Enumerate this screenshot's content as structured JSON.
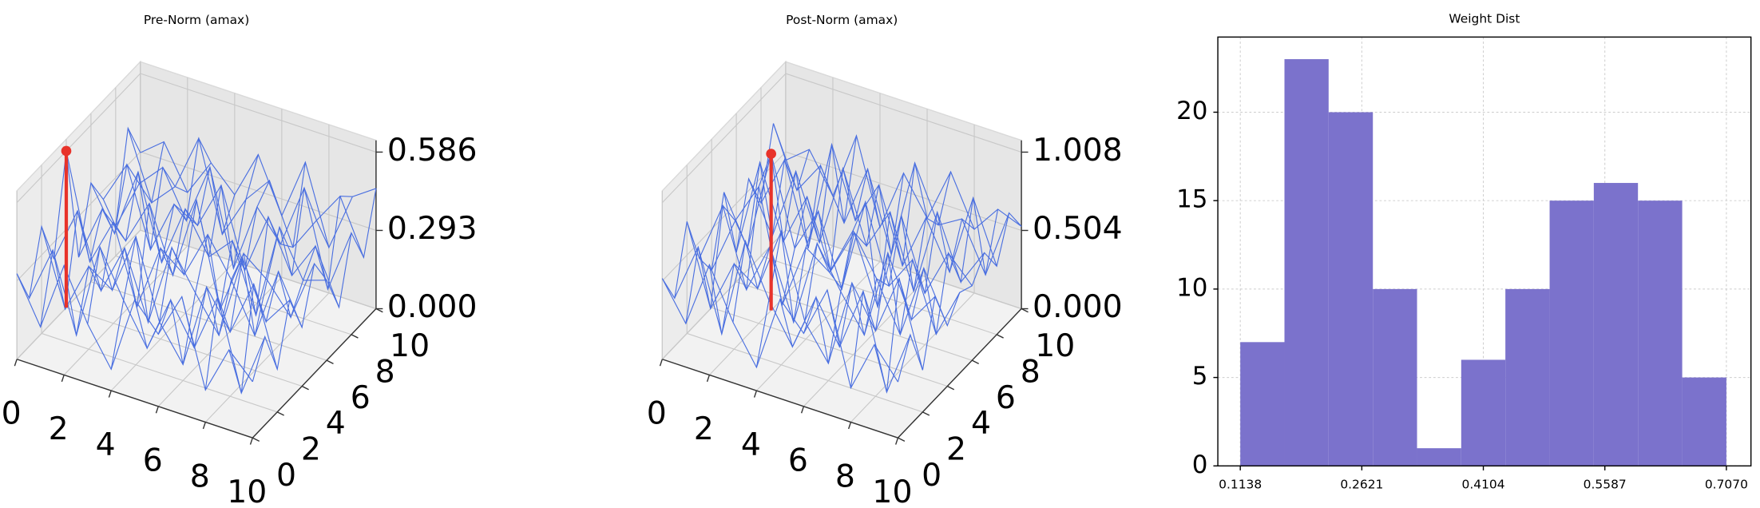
{
  "chart_data": [
    {
      "type": "wireframe3d",
      "title": "Pre-Norm (amax)",
      "color": "#4a6fe0",
      "peak_color": "#e8332a",
      "xlim": [
        0,
        10
      ],
      "ylim": [
        0,
        10
      ],
      "zlim": [
        0,
        0.63
      ],
      "xticks": [
        0,
        2,
        4,
        6,
        8,
        10
      ],
      "yticks": [
        0,
        2,
        4,
        6,
        8,
        10
      ],
      "zticks": [
        {
          "value": 0,
          "label": "0.000"
        },
        0.293,
        0.586
      ],
      "x": [
        0,
        1,
        2,
        3,
        4,
        5,
        6,
        7,
        8,
        9,
        10
      ],
      "y": [
        0,
        1,
        2,
        3,
        4,
        5,
        6,
        7,
        8,
        9,
        10
      ],
      "z": [
        [
          0.32,
          0.15,
          0.41,
          0.22,
          0.08,
          0.37,
          0.27,
          0.44,
          0.12,
          0.3,
          0.21
        ],
        [
          0.18,
          0.39,
          0.1,
          0.46,
          0.29,
          0.14,
          0.35,
          0.2,
          0.42,
          0.09,
          0.33
        ],
        [
          0.4,
          0.12,
          0.31,
          0.25,
          0.48,
          0.19,
          0.06,
          0.38,
          0.24,
          0.45,
          0.16
        ],
        [
          0.23,
          0.44,
          0.17,
          0.36,
          0.11,
          0.42,
          0.28,
          0.15,
          0.47,
          0.26,
          0.37
        ],
        [
          0.586,
          0.2,
          0.38,
          0.09,
          0.34,
          0.27,
          0.45,
          0.31,
          0.13,
          0.4,
          0.22
        ],
        [
          0.14,
          0.35,
          0.26,
          0.43,
          0.19,
          0.5,
          0.12,
          0.36,
          0.29,
          0.18,
          0.41
        ],
        [
          0.37,
          0.21,
          0.47,
          0.16,
          0.39,
          0.24,
          0.33,
          0.08,
          0.44,
          0.27,
          0.3
        ],
        [
          0.26,
          0.42,
          0.13,
          0.33,
          0.28,
          0.46,
          0.17,
          0.4,
          0.21,
          0.35,
          0.15
        ],
        [
          0.11,
          0.3,
          0.39,
          0.22,
          0.45,
          0.1,
          0.36,
          0.25,
          0.49,
          0.14,
          0.38
        ],
        [
          0.43,
          0.18,
          0.27,
          0.48,
          0.15,
          0.31,
          0.41,
          0.19,
          0.32,
          0.44,
          0.24
        ],
        [
          0.29,
          0.36,
          0.2,
          0.34,
          0.25,
          0.43,
          0.23,
          0.46,
          0.17,
          0.39,
          0.45
        ]
      ]
    },
    {
      "type": "wireframe3d",
      "title": "Post-Norm (amax)",
      "color": "#4a6fe0",
      "peak_color": "#e8332a",
      "xlim": [
        0,
        10
      ],
      "ylim": [
        0,
        10
      ],
      "zlim": [
        0,
        1.084
      ],
      "xticks": [
        0,
        2,
        4,
        6,
        8,
        10
      ],
      "yticks": [
        0,
        2,
        4,
        6,
        8,
        10
      ],
      "zticks": [
        {
          "value": 0,
          "label": "0.000"
        },
        0.504,
        1.008
      ],
      "x": [
        0,
        1,
        2,
        3,
        4,
        5,
        6,
        7,
        8,
        9,
        10
      ],
      "y": [
        0,
        1,
        2,
        3,
        4,
        5,
        6,
        7,
        8,
        9,
        10
      ],
      "z": [
        [
          0.52,
          0.28,
          0.71,
          0.39,
          0.15,
          0.64,
          0.47,
          0.8,
          0.22,
          0.55,
          0.36
        ],
        [
          0.31,
          0.69,
          0.18,
          0.83,
          0.5,
          0.25,
          0.62,
          0.35,
          0.76,
          0.16,
          0.58
        ],
        [
          0.72,
          0.21,
          0.55,
          0.44,
          0.86,
          0.33,
          0.11,
          0.68,
          0.42,
          0.81,
          0.27
        ],
        [
          0.4,
          0.79,
          0.3,
          0.63,
          0.19,
          0.75,
          0.49,
          0.26,
          0.84,
          0.46,
          0.66
        ],
        [
          0.24,
          0.61,
          0.88,
          0.17,
          0.59,
          0.48,
          0.8,
          0.54,
          0.23,
          0.71,
          0.39
        ],
        [
          0.66,
          0.35,
          1.008,
          0.45,
          0.74,
          0.29,
          0.9,
          0.41,
          0.63,
          0.2,
          0.52
        ],
        [
          0.19,
          0.82,
          0.36,
          0.7,
          0.27,
          0.57,
          0.14,
          0.78,
          0.33,
          0.64,
          0.48
        ],
        [
          0.58,
          0.26,
          0.73,
          0.32,
          0.85,
          0.4,
          0.67,
          0.21,
          0.77,
          0.37,
          0.61
        ],
        [
          0.34,
          0.67,
          0.15,
          0.87,
          0.43,
          0.71,
          0.24,
          0.6,
          0.3,
          0.83,
          0.44
        ],
        [
          0.77,
          0.39,
          0.6,
          0.28,
          0.68,
          0.18,
          0.82,
          0.47,
          0.56,
          0.25,
          0.7
        ],
        [
          0.45,
          0.57,
          0.32,
          0.76,
          0.22,
          0.62,
          0.38,
          0.73,
          0.41,
          0.59,
          0.53
        ]
      ]
    },
    {
      "type": "histogram",
      "title": "Weight Dist",
      "color": "#7b72cc",
      "grid": true,
      "bins": [
        0.1138,
        0.1677,
        0.2216,
        0.2756,
        0.3295,
        0.3834,
        0.4373,
        0.4913,
        0.5452,
        0.5991,
        0.6531,
        0.707
      ],
      "values": [
        7,
        23,
        20,
        10,
        1,
        6,
        10,
        15,
        16,
        15,
        5
      ],
      "xlim": [
        0.0864,
        0.737
      ],
      "ylim": [
        0,
        24.25
      ],
      "xticks": [
        0.1138,
        0.2621,
        0.4104,
        0.5587,
        {
          "value": 0.707,
          "label": "0.7070"
        }
      ],
      "yticks": [
        0,
        5,
        10,
        15,
        20
      ]
    }
  ]
}
